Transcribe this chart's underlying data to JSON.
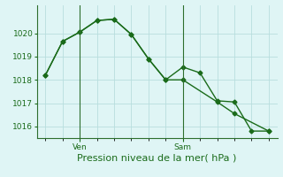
{
  "line1_x": [
    0,
    1,
    2,
    3,
    4,
    5,
    6,
    7,
    8,
    9,
    10,
    11,
    12,
    13
  ],
  "line1_y": [
    1018.2,
    1019.65,
    1020.05,
    1020.55,
    1020.6,
    1019.95,
    1018.9,
    1018.0,
    1018.55,
    1018.3,
    1017.1,
    1017.05,
    1015.8,
    1015.8
  ],
  "line2_x": [
    0,
    1,
    2,
    3,
    4,
    5,
    6,
    7,
    8,
    10,
    11,
    13
  ],
  "line2_y": [
    1018.2,
    1019.65,
    1020.05,
    1020.55,
    1020.6,
    1019.95,
    1018.9,
    1018.0,
    1018.0,
    1017.05,
    1016.55,
    1015.8
  ],
  "line_color": "#1a6b1a",
  "marker": "D",
  "markersize": 2.5,
  "linewidth": 1.0,
  "background_color": "#dff5f5",
  "grid_color": "#b8dede",
  "axis_color": "#2d6e2d",
  "tick_color": "#1a6b1a",
  "xlabel": "Pression niveau de la mer( hPa )",
  "xlabel_fontsize": 8,
  "xlabel_color": "#1a6b1a",
  "ylim": [
    1015.5,
    1021.2
  ],
  "yticks": [
    1016,
    1017,
    1018,
    1019,
    1020
  ],
  "ytick_fontsize": 6.5,
  "xlim": [
    -0.5,
    13.5
  ],
  "xtick_label_positions": [
    2,
    8
  ],
  "xtick_labels": [
    "Ven",
    "Sam"
  ],
  "xtick_fontsize": 6.5,
  "vline_positions": [
    2,
    8
  ],
  "grid_xticks": [
    0,
    1,
    2,
    3,
    4,
    5,
    6,
    7,
    8,
    9,
    10,
    11,
    12,
    13
  ]
}
